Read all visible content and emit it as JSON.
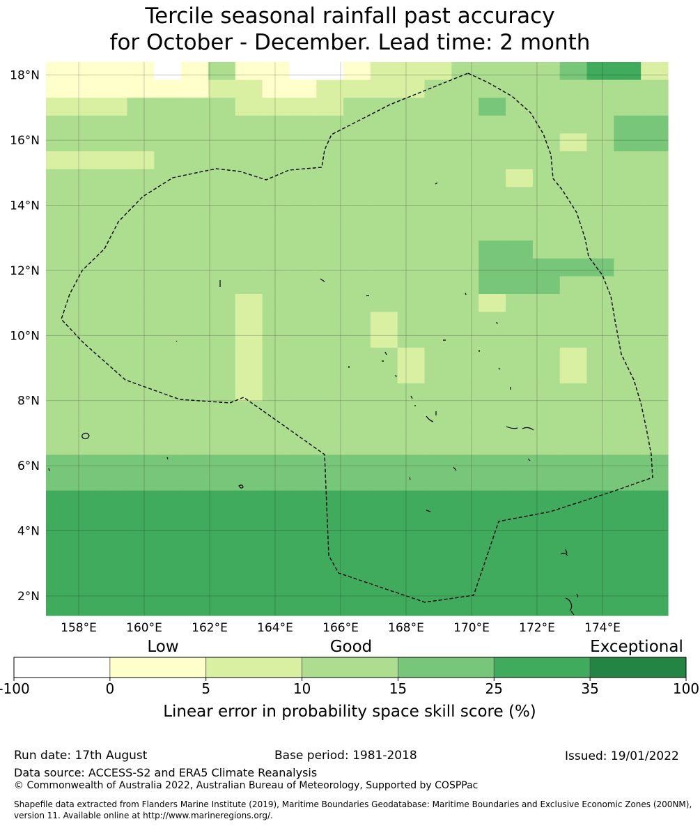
{
  "title_line1": "Tercile seasonal rainfall past accuracy",
  "title_line2": "for October - December. Lead time: 2 month",
  "map": {
    "lon_range": [
      157.0,
      176.0
    ],
    "lat_range": [
      1.4,
      18.4
    ],
    "lon_ticks": [
      "158°E",
      "160°E",
      "162°E",
      "164°E",
      "166°E",
      "168°E",
      "170°E",
      "172°E",
      "174°E"
    ],
    "lon_values": [
      158,
      160,
      162,
      164,
      166,
      168,
      170,
      172,
      174
    ],
    "lat_ticks": [
      "18°N",
      "16°N",
      "14°N",
      "12°N",
      "10°N",
      "8°N",
      "6°N",
      "4°N",
      "2°N"
    ],
    "lat_values": [
      18,
      16,
      14,
      12,
      10,
      8,
      6,
      4,
      2
    ],
    "grid": true
  },
  "chart_data": {
    "type": "heatmap",
    "x": [
      157.25,
      158.08,
      158.92,
      159.75,
      160.58,
      161.42,
      162.25,
      163.08,
      163.92,
      164.75,
      165.58,
      166.42,
      167.25,
      168.08,
      168.92,
      169.75,
      170.58,
      171.42,
      172.25,
      173.08,
      173.92,
      174.75,
      175.58
    ],
    "y": [
      18.13,
      17.58,
      17.03,
      16.48,
      15.93,
      15.37,
      14.82,
      14.27,
      13.72,
      13.17,
      12.62,
      12.07,
      11.52,
      10.97,
      10.42,
      9.87,
      9.32,
      8.77,
      8.22,
      7.67,
      7.12,
      6.57,
      6.02,
      5.47,
      4.92,
      4.37,
      3.82,
      3.27,
      2.72,
      2.17,
      1.62
    ],
    "class_rows": [
      "11110131100122233334552",
      "11111122112222333333333",
      "22233332222333334333333",
      "33333333333333333333344",
      "33333333333333333332344",
      "22223333333333333333333",
      "33333333333333333233333",
      "33333333333333333333333",
      "33333333333333333333333",
      "33333333333333333333333",
      "33333333333333334433333",
      "33333333333333334444433",
      "33333333333333334443333",
      "33333332333333332333333",
      "33333332333323333333333",
      "33333332333323333333333",
      "33333332333332333332333",
      "33333332333332333332333",
      "33333332333333333333333",
      "33333333333333333333333",
      "33333333333333333333333",
      "33333333333333333333333",
      "44444444444444444444444",
      "44444444444444444444444",
      "55555555555555555555555",
      "55555555555555555555555",
      "55555555555555555555555",
      "55555555555555555555555",
      "55555555555555555555555",
      "55555555555555555555555",
      "55555555555555555555555"
    ],
    "class_edges": [
      -100,
      0,
      5,
      10,
      15,
      25,
      35,
      100
    ]
  },
  "colorbar": {
    "colors": [
      "#ffffff",
      "#ffffcc",
      "#d9f0a3",
      "#addd8e",
      "#78c679",
      "#41ab5d",
      "#238443"
    ],
    "tick_labels": [
      "-100",
      "0",
      "5",
      "10",
      "15",
      "25",
      "35",
      "100"
    ],
    "header_low": "Low",
    "header_good": "Good",
    "header_exceptional": "Exceptional",
    "title": "Linear error in probability space skill score (%)"
  },
  "footer": {
    "run_date": "Run date: 17th August",
    "base_period": "Base period: 1981-2018",
    "issued": "Issued: 19/01/2022",
    "data_source": "Data source: ACCESS-S2 and ERA5 Climate Reanalysis",
    "copyright": "© Commonwealth of Australia 2022, Australian Bureau of Meteorology, Supported by COSPPac",
    "shapefile": "Shapefile data extracted from Flanders Marine Institute (2019), Maritime Boundaries Geodatabase: Maritime Boundaries and Exclusive Economic Zones (200NM), version 11. Available online at http://www.marineregions.org/."
  }
}
